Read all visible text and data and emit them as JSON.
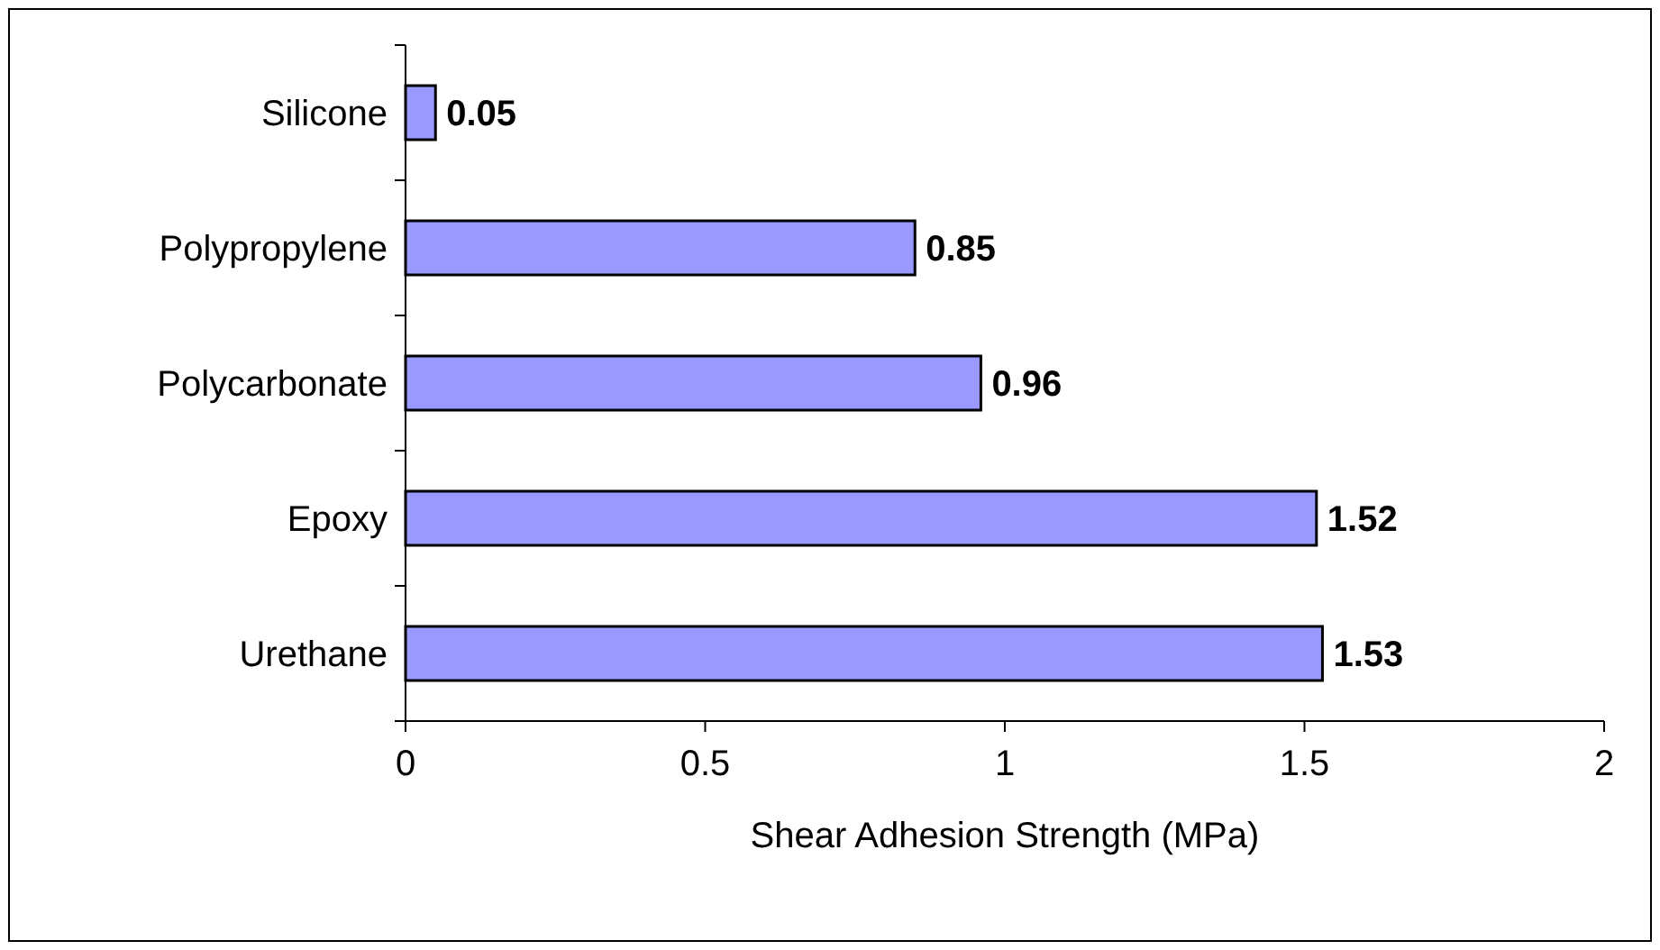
{
  "chart_data": {
    "type": "bar",
    "orientation": "horizontal",
    "categories": [
      "Silicone",
      "Polypropylene",
      "Polycarbonate",
      "Epoxy",
      "Urethane"
    ],
    "values": [
      0.05,
      0.85,
      0.96,
      1.52,
      1.53
    ],
    "color": "#9999ff",
    "xlim": [
      0,
      2
    ],
    "xticks": [
      0,
      0.5,
      1,
      1.5,
      2
    ],
    "xlabel": "Shear Adhesion Strength (MPa)",
    "data_labels": true
  }
}
